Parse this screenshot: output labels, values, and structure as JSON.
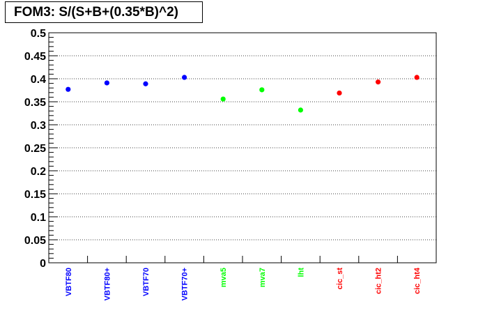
{
  "chart_data": {
    "type": "scatter",
    "title": "FOM3: S/(S+B+(0.35*B)^2)",
    "xlabel": "",
    "ylabel": "",
    "ylim": [
      0,
      0.5
    ],
    "yticks": [
      "0",
      "0.05",
      "0.1",
      "0.15",
      "0.2",
      "0.25",
      "0.3",
      "0.35",
      "0.4",
      "0.45",
      "0.5"
    ],
    "grid": "horizontal dotted",
    "categories": [
      "VBTF80",
      "VBTF80+",
      "VBTF70",
      "VBTF70+",
      "mva5",
      "mva7",
      "lht",
      "cic_st",
      "cic_ht2",
      "cic_ht4"
    ],
    "values": [
      0.377,
      0.391,
      0.389,
      0.403,
      0.356,
      0.376,
      0.332,
      0.369,
      0.393,
      0.403
    ],
    "colors": [
      "#0000ff",
      "#0000ff",
      "#0000ff",
      "#0000ff",
      "#00ff00",
      "#00ff00",
      "#00ff00",
      "#ff0000",
      "#ff0000",
      "#ff0000"
    ]
  }
}
